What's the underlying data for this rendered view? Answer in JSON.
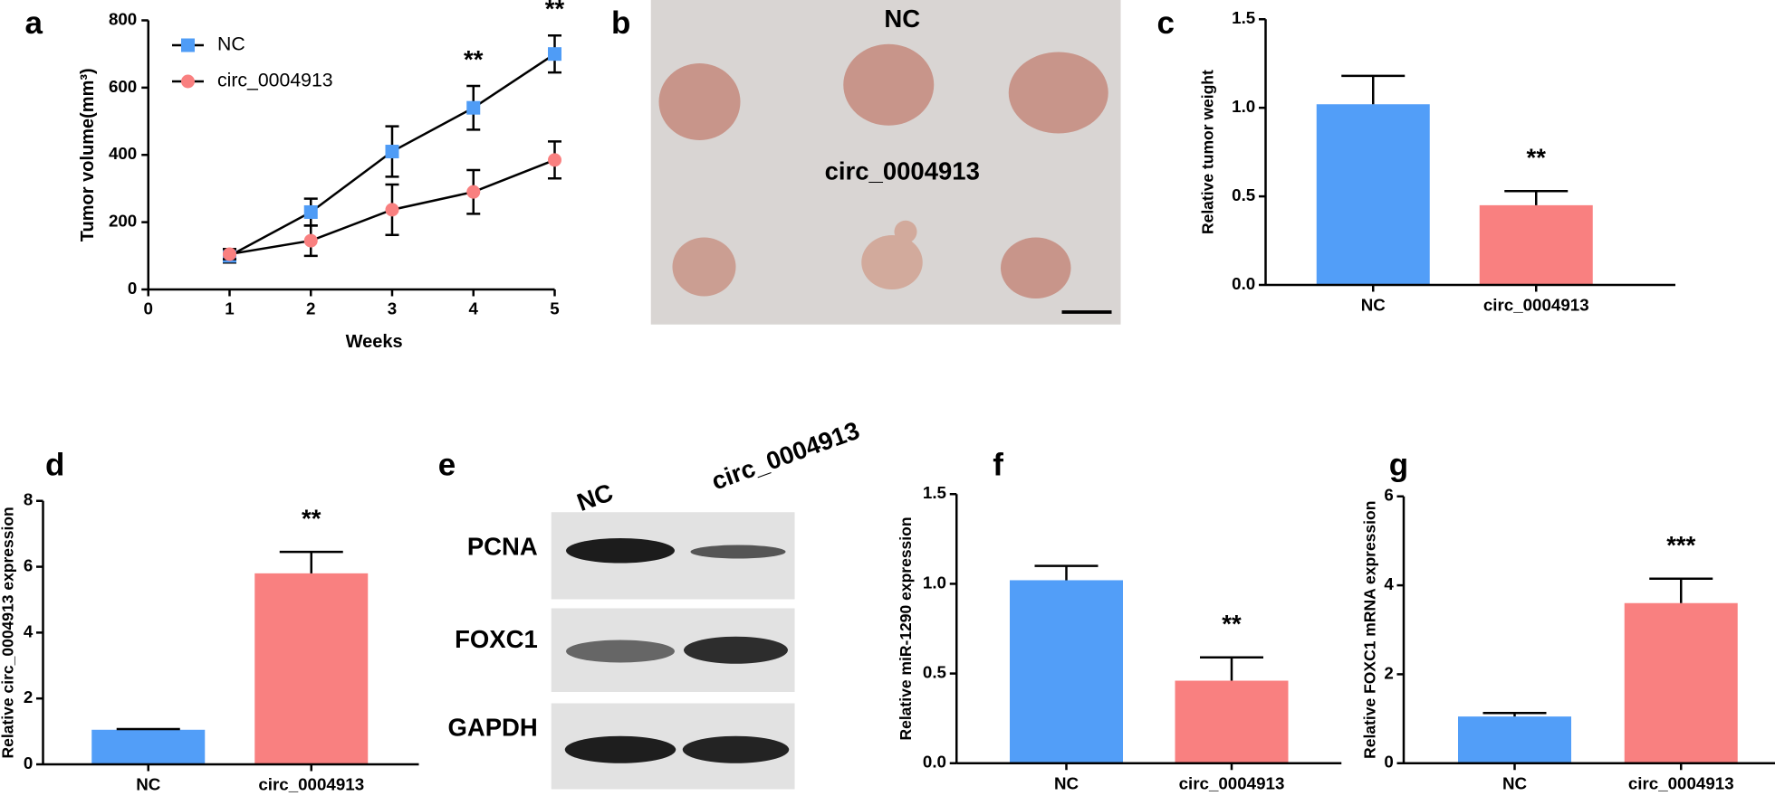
{
  "chart_data": [
    {
      "type": "line",
      "panel_label": "a",
      "xlabel": "Weeks",
      "ylabel": "Tumor volume(mm³)",
      "x": [
        1,
        2,
        3,
        4,
        5
      ],
      "xlim": [
        0,
        5
      ],
      "xticks": [
        0,
        1,
        2,
        3,
        4,
        5
      ],
      "ylim": [
        0,
        800
      ],
      "yticks": [
        0,
        200,
        400,
        600,
        800
      ],
      "series": [
        {
          "name": "NC",
          "color": "#4f9cf6",
          "marker": "square",
          "values": [
            100,
            230,
            410,
            540,
            700
          ],
          "errors": [
            20,
            40,
            75,
            65,
            55
          ]
        },
        {
          "name": "circ_0004913",
          "color": "#f98080",
          "marker": "circle",
          "values": [
            105,
            145,
            237,
            290,
            385
          ],
          "errors": [
            15,
            45,
            75,
            65,
            55
          ]
        }
      ],
      "annotations": [
        {
          "text": "**",
          "x": 4
        },
        {
          "text": "**",
          "x": 5
        }
      ]
    },
    {
      "type": "bar",
      "panel_label": "c",
      "ylabel": "Relative tumor weight",
      "categories": [
        "NC",
        "circ_0004913"
      ],
      "colors": [
        "#529ef8",
        "#f98080"
      ],
      "values": [
        1.02,
        0.45
      ],
      "errors": [
        0.16,
        0.08
      ],
      "ylim": [
        0,
        1.5
      ],
      "yticks": [
        {
          "value": 0,
          "label": "0.0"
        },
        {
          "value": 0.5,
          "label": "0.5"
        },
        {
          "value": 1,
          "label": "1.0"
        },
        {
          "value": 1.5,
          "label": "1.5"
        }
      ],
      "annotations": [
        {
          "text": "**",
          "x": "circ_0004913"
        }
      ]
    },
    {
      "type": "bar",
      "panel_label": "d",
      "ylabel": "Relative circ_0004913  expression",
      "categories": [
        "NC",
        "circ_0004913"
      ],
      "colors": [
        "#529ef8",
        "#f98080"
      ],
      "values": [
        1.05,
        5.8
      ],
      "errors": [
        0.02,
        0.65
      ],
      "ylim": [
        0,
        8
      ],
      "yticks": [
        0,
        2,
        4,
        6,
        8
      ],
      "annotations": [
        {
          "text": "**",
          "x": "circ_0004913"
        }
      ]
    },
    {
      "type": "bar",
      "panel_label": "f",
      "ylabel": "Relative miR-1290 expression",
      "categories": [
        "NC",
        "circ_0004913"
      ],
      "colors": [
        "#529ef8",
        "#f98080"
      ],
      "values": [
        1.02,
        0.46
      ],
      "errors": [
        0.08,
        0.13
      ],
      "ylim": [
        0,
        1.5
      ],
      "yticks": [
        {
          "value": 0,
          "label": "0.0"
        },
        {
          "value": 0.5,
          "label": "0.5"
        },
        {
          "value": 1,
          "label": "1.0"
        },
        {
          "value": 1.5,
          "label": "1.5"
        }
      ],
      "annotations": [
        {
          "text": "**",
          "x": "circ_0004913"
        }
      ]
    },
    {
      "type": "bar",
      "panel_label": "g",
      "ylabel": "Relative FOXC1 mRNA  expression",
      "categories": [
        "NC",
        "circ_0004913"
      ],
      "colors": [
        "#529ef8",
        "#f98080"
      ],
      "values": [
        1.05,
        3.6
      ],
      "errors": [
        0.08,
        0.55
      ],
      "ylim": [
        0,
        6
      ],
      "yticks": [
        0,
        2,
        4,
        6
      ],
      "annotations": [
        {
          "text": "***",
          "x": "circ_0004913"
        }
      ]
    }
  ],
  "images": [
    {
      "panel_label": "b",
      "labels": [
        "NC",
        "circ_0004913"
      ]
    },
    {
      "panel_label": "e",
      "lanes": [
        "NC",
        "circ_0004913"
      ],
      "bands": [
        "PCNA",
        "FOXC1",
        "GAPDH"
      ]
    }
  ]
}
